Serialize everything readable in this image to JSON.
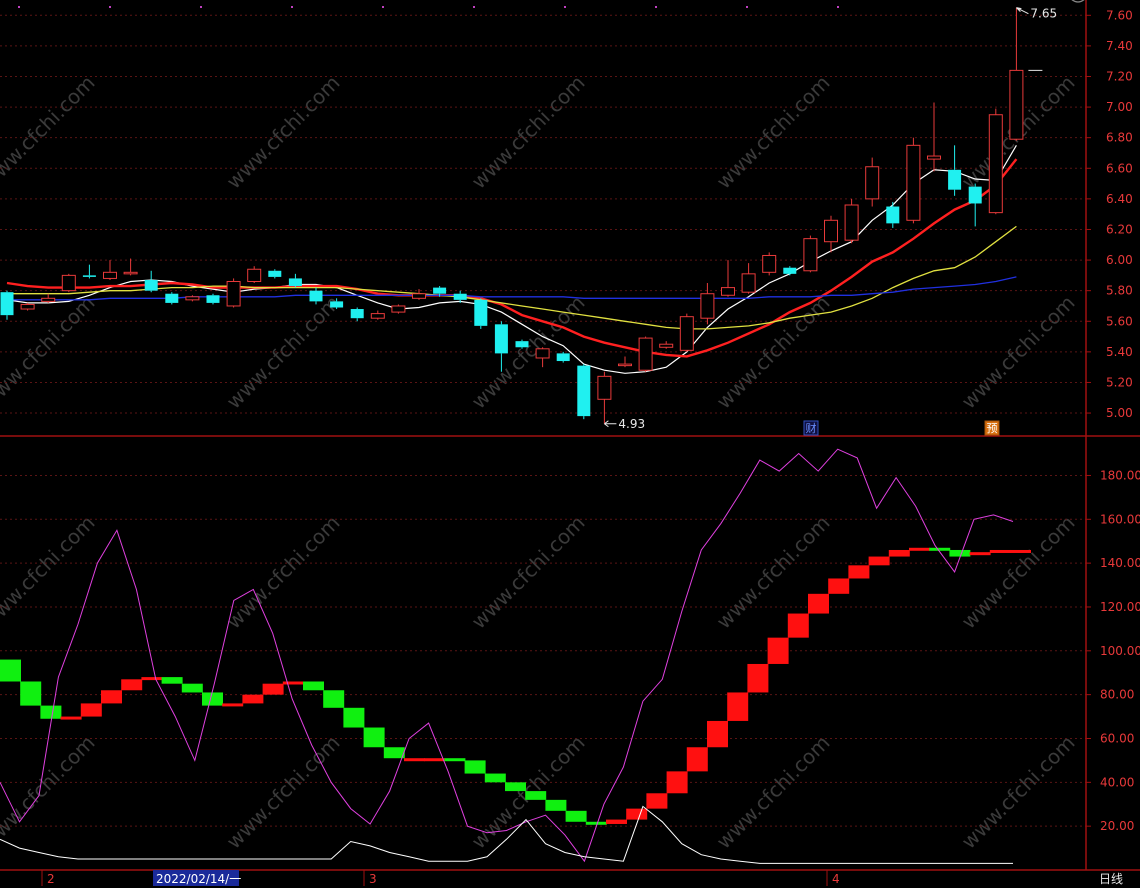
{
  "colors": {
    "background": "#000000",
    "frame": "#a01010",
    "axis_text": "#e8393a",
    "grid": "#5a1414",
    "up_candle": "#e83a3a",
    "down_candle": "#20f0f0",
    "ma5": "#ffffff",
    "ma10": "#ff2020",
    "ma20": "#e0e040",
    "ma60": "#2030e0",
    "osc_line": "#e040e0",
    "vol_line": "#ffffff",
    "block_up": "#ff1010",
    "block_down": "#10f010"
  },
  "watermark": "www.cfchi.com",
  "status": {
    "timeframe": "日线",
    "date_cursor": "2022/02/14/一"
  },
  "chart_data": [
    {
      "type": "candlestick",
      "ylim": [
        4.85,
        7.7
      ],
      "yticks": [
        "5.00",
        "5.20",
        "5.40",
        "5.60",
        "5.80",
        "6.00",
        "6.20",
        "6.40",
        "6.60",
        "6.80",
        "7.00",
        "7.20",
        "7.40",
        "7.60"
      ],
      "grid": true,
      "annotations": {
        "high": "7.65",
        "low": "4.93",
        "event_marks": [
          "财",
          "预"
        ]
      },
      "candles": [
        {
          "o": 5.79,
          "c": 5.64,
          "h": 5.8,
          "l": 5.61
        },
        {
          "o": 5.68,
          "c": 5.71,
          "h": 5.72,
          "l": 5.67
        },
        {
          "o": 5.73,
          "c": 5.75,
          "h": 5.78,
          "l": 5.72
        },
        {
          "o": 5.8,
          "c": 5.9,
          "h": 5.91,
          "l": 5.79
        },
        {
          "o": 5.9,
          "c": 5.89,
          "h": 5.97,
          "l": 5.88
        },
        {
          "o": 5.88,
          "c": 5.92,
          "h": 6.0,
          "l": 5.87
        },
        {
          "o": 5.91,
          "c": 5.92,
          "h": 6.01,
          "l": 5.9
        },
        {
          "o": 5.87,
          "c": 5.8,
          "h": 5.93,
          "l": 5.79
        },
        {
          "o": 5.78,
          "c": 5.72,
          "h": 5.79,
          "l": 5.71
        },
        {
          "o": 5.74,
          "c": 5.76,
          "h": 5.77,
          "l": 5.73
        },
        {
          "o": 5.77,
          "c": 5.72,
          "h": 5.78,
          "l": 5.71
        },
        {
          "o": 5.7,
          "c": 5.86,
          "h": 5.88,
          "l": 5.69
        },
        {
          "o": 5.86,
          "c": 5.94,
          "h": 5.96,
          "l": 5.85
        },
        {
          "o": 5.93,
          "c": 5.89,
          "h": 5.94,
          "l": 5.88
        },
        {
          "o": 5.88,
          "c": 5.83,
          "h": 5.91,
          "l": 5.82
        },
        {
          "o": 5.8,
          "c": 5.73,
          "h": 5.82,
          "l": 5.71
        },
        {
          "o": 5.73,
          "c": 5.69,
          "h": 5.75,
          "l": 5.68
        },
        {
          "o": 5.68,
          "c": 5.62,
          "h": 5.69,
          "l": 5.6
        },
        {
          "o": 5.62,
          "c": 5.65,
          "h": 5.67,
          "l": 5.61
        },
        {
          "o": 5.66,
          "c": 5.7,
          "h": 5.71,
          "l": 5.65
        },
        {
          "o": 5.75,
          "c": 5.78,
          "h": 5.81,
          "l": 5.74
        },
        {
          "o": 5.82,
          "c": 5.78,
          "h": 5.83,
          "l": 5.76
        },
        {
          "o": 5.78,
          "c": 5.74,
          "h": 5.8,
          "l": 5.72
        },
        {
          "o": 5.74,
          "c": 5.57,
          "h": 5.75,
          "l": 5.55
        },
        {
          "o": 5.58,
          "c": 5.39,
          "h": 5.6,
          "l": 5.27
        },
        {
          "o": 5.47,
          "c": 5.43,
          "h": 5.48,
          "l": 5.42
        },
        {
          "o": 5.36,
          "c": 5.42,
          "h": 5.43,
          "l": 5.3
        },
        {
          "o": 5.39,
          "c": 5.34,
          "h": 5.4,
          "l": 5.33
        },
        {
          "o": 5.31,
          "c": 4.98,
          "h": 5.32,
          "l": 4.96
        },
        {
          "o": 5.09,
          "c": 5.24,
          "h": 5.27,
          "l": 4.93
        },
        {
          "o": 5.31,
          "c": 5.32,
          "h": 5.37,
          "l": 5.3
        },
        {
          "o": 5.28,
          "c": 5.49,
          "h": 5.5,
          "l": 5.27
        },
        {
          "o": 5.43,
          "c": 5.45,
          "h": 5.47,
          "l": 5.42
        },
        {
          "o": 5.41,
          "c": 5.63,
          "h": 5.65,
          "l": 5.4
        },
        {
          "o": 5.62,
          "c": 5.78,
          "h": 5.85,
          "l": 5.58
        },
        {
          "o": 5.77,
          "c": 5.82,
          "h": 6.0,
          "l": 5.76
        },
        {
          "o": 5.79,
          "c": 5.91,
          "h": 5.98,
          "l": 5.78
        },
        {
          "o": 5.92,
          "c": 6.03,
          "h": 6.05,
          "l": 5.9
        },
        {
          "o": 5.95,
          "c": 5.91,
          "h": 5.96,
          "l": 5.9
        },
        {
          "o": 5.93,
          "c": 6.14,
          "h": 6.16,
          "l": 5.92
        },
        {
          "o": 6.12,
          "c": 6.26,
          "h": 6.29,
          "l": 6.05
        },
        {
          "o": 6.13,
          "c": 6.36,
          "h": 6.4,
          "l": 6.11
        },
        {
          "o": 6.4,
          "c": 6.61,
          "h": 6.67,
          "l": 6.35
        },
        {
          "o": 6.35,
          "c": 6.24,
          "h": 6.38,
          "l": 6.21
        },
        {
          "o": 6.26,
          "c": 6.75,
          "h": 6.8,
          "l": 6.24
        },
        {
          "o": 6.66,
          "c": 6.68,
          "h": 7.03,
          "l": 6.58
        },
        {
          "o": 6.59,
          "c": 6.46,
          "h": 6.75,
          "l": 6.42
        },
        {
          "o": 6.48,
          "c": 6.37,
          "h": 6.5,
          "l": 6.22
        },
        {
          "o": 6.31,
          "c": 6.95,
          "h": 6.99,
          "l": 6.3
        },
        {
          "o": 6.79,
          "c": 7.24,
          "h": 7.65,
          "l": 6.78
        }
      ],
      "ma_lines": [
        {
          "name": "MA5",
          "color_key": "ma5",
          "values": [
            5.74,
            5.72,
            5.72,
            5.73,
            5.77,
            5.82,
            5.86,
            5.87,
            5.86,
            5.83,
            5.81,
            5.79,
            5.81,
            5.82,
            5.84,
            5.84,
            5.82,
            5.77,
            5.72,
            5.68,
            5.69,
            5.72,
            5.73,
            5.71,
            5.66,
            5.58,
            5.5,
            5.44,
            5.32,
            5.28,
            5.26,
            5.27,
            5.3,
            5.4,
            5.56,
            5.68,
            5.76,
            5.85,
            5.91,
            5.99,
            6.06,
            6.12,
            6.26,
            6.36,
            6.5,
            6.59,
            6.58,
            6.53,
            6.52,
            6.75
          ]
        },
        {
          "name": "MA10",
          "color_key": "ma10",
          "values": [
            5.85,
            5.83,
            5.82,
            5.82,
            5.82,
            5.83,
            5.83,
            5.84,
            5.85,
            5.84,
            5.82,
            5.82,
            5.82,
            5.82,
            5.83,
            5.83,
            5.83,
            5.81,
            5.78,
            5.77,
            5.77,
            5.77,
            5.77,
            5.75,
            5.71,
            5.64,
            5.6,
            5.56,
            5.5,
            5.46,
            5.43,
            5.4,
            5.38,
            5.37,
            5.41,
            5.46,
            5.52,
            5.58,
            5.66,
            5.72,
            5.8,
            5.89,
            5.99,
            6.05,
            6.14,
            6.24,
            6.33,
            6.39,
            6.49,
            6.66
          ]
        },
        {
          "name": "MA20",
          "color_key": "ma20",
          "values": [
            5.78,
            5.78,
            5.78,
            5.78,
            5.79,
            5.8,
            5.8,
            5.81,
            5.82,
            5.82,
            5.83,
            5.83,
            5.82,
            5.82,
            5.82,
            5.82,
            5.82,
            5.81,
            5.8,
            5.79,
            5.78,
            5.77,
            5.76,
            5.74,
            5.72,
            5.7,
            5.68,
            5.66,
            5.64,
            5.62,
            5.6,
            5.58,
            5.56,
            5.55,
            5.55,
            5.56,
            5.57,
            5.59,
            5.62,
            5.64,
            5.66,
            5.7,
            5.75,
            5.82,
            5.88,
            5.93,
            5.95,
            6.02,
            6.12,
            6.22
          ]
        },
        {
          "name": "MA60",
          "color_key": "ma60",
          "values": [
            5.74,
            5.74,
            5.74,
            5.74,
            5.74,
            5.75,
            5.75,
            5.75,
            5.75,
            5.76,
            5.76,
            5.76,
            5.76,
            5.76,
            5.77,
            5.77,
            5.77,
            5.77,
            5.77,
            5.77,
            5.77,
            5.77,
            5.77,
            5.76,
            5.76,
            5.76,
            5.76,
            5.76,
            5.75,
            5.75,
            5.75,
            5.75,
            5.75,
            5.75,
            5.75,
            5.75,
            5.75,
            5.76,
            5.76,
            5.76,
            5.77,
            5.77,
            5.78,
            5.79,
            5.81,
            5.82,
            5.83,
            5.84,
            5.86,
            5.89
          ]
        }
      ]
    },
    {
      "type": "line",
      "ylim": [
        0,
        198
      ],
      "yticks": [
        "20.00",
        "40.00",
        "60.00",
        "80.00",
        "100.00",
        "120.00",
        "140.00",
        "160.00",
        "180.00"
      ],
      "grid": true,
      "step_blocks": [
        {
          "from": 96,
          "to": 86,
          "up": false
        },
        {
          "from": 86,
          "to": 75,
          "up": false
        },
        {
          "from": 75,
          "to": 69,
          "up": false
        },
        {
          "from": 69,
          "to": 70,
          "up": true
        },
        {
          "from": 70,
          "to": 76,
          "up": true
        },
        {
          "from": 76,
          "to": 82,
          "up": true
        },
        {
          "from": 82,
          "to": 87,
          "up": true
        },
        {
          "from": 87,
          "to": 88,
          "up": true
        },
        {
          "from": 88,
          "to": 85,
          "up": false
        },
        {
          "from": 85,
          "to": 81,
          "up": false
        },
        {
          "from": 81,
          "to": 75,
          "up": false
        },
        {
          "from": 75,
          "to": 76,
          "up": true
        },
        {
          "from": 76,
          "to": 80,
          "up": true
        },
        {
          "from": 80,
          "to": 85,
          "up": true
        },
        {
          "from": 85,
          "to": 86,
          "up": true
        },
        {
          "from": 86,
          "to": 82,
          "up": false
        },
        {
          "from": 82,
          "to": 74,
          "up": false
        },
        {
          "from": 74,
          "to": 65,
          "up": false
        },
        {
          "from": 65,
          "to": 56,
          "up": false
        },
        {
          "from": 56,
          "to": 51,
          "up": false
        },
        {
          "from": 51,
          "to": 50,
          "up": true
        },
        {
          "from": 50,
          "to": 51,
          "up": true
        },
        {
          "from": 51,
          "to": 50,
          "up": false
        },
        {
          "from": 50,
          "to": 44,
          "up": false
        },
        {
          "from": 44,
          "to": 40,
          "up": false
        },
        {
          "from": 40,
          "to": 36,
          "up": false
        },
        {
          "from": 36,
          "to": 32,
          "up": false
        },
        {
          "from": 32,
          "to": 27,
          "up": false
        },
        {
          "from": 27,
          "to": 22,
          "up": false
        },
        {
          "from": 22,
          "to": 21,
          "up": false
        },
        {
          "from": 21,
          "to": 23,
          "up": true
        },
        {
          "from": 23,
          "to": 28,
          "up": true
        },
        {
          "from": 28,
          "to": 35,
          "up": true
        },
        {
          "from": 35,
          "to": 45,
          "up": true
        },
        {
          "from": 45,
          "to": 56,
          "up": true
        },
        {
          "from": 56,
          "to": 68,
          "up": true
        },
        {
          "from": 68,
          "to": 81,
          "up": true
        },
        {
          "from": 81,
          "to": 94,
          "up": true
        },
        {
          "from": 94,
          "to": 106,
          "up": true
        },
        {
          "from": 106,
          "to": 117,
          "up": true
        },
        {
          "from": 117,
          "to": 126,
          "up": true
        },
        {
          "from": 126,
          "to": 133,
          "up": true
        },
        {
          "from": 133,
          "to": 139,
          "up": true
        },
        {
          "from": 139,
          "to": 143,
          "up": true
        },
        {
          "from": 143,
          "to": 146,
          "up": true
        },
        {
          "from": 146,
          "to": 147,
          "up": true
        },
        {
          "from": 147,
          "to": 146,
          "up": false
        },
        {
          "from": 146,
          "to": 143,
          "up": false
        },
        {
          "from": 144,
          "to": 145,
          "up": true
        },
        {
          "from": 145,
          "to": 146,
          "up": true
        },
        {
          "from": 146,
          "to": 146,
          "up": true
        }
      ],
      "series": [
        {
          "color_key": "osc_line",
          "values": [
            40,
            22,
            34,
            88,
            112,
            140,
            155,
            128,
            87,
            70,
            50,
            85,
            123,
            128,
            108,
            78,
            57,
            40,
            28,
            21,
            36,
            60,
            67,
            45,
            20,
            17,
            18,
            22,
            25,
            16,
            4,
            30,
            47,
            77,
            87,
            118,
            146,
            158,
            172,
            187,
            182,
            190,
            182,
            192,
            188,
            165,
            179,
            166,
            148,
            136,
            160,
            162,
            159
          ]
        },
        {
          "color_key": "vol_line",
          "values": [
            14,
            10,
            8,
            6,
            5,
            5,
            5,
            5,
            5,
            5,
            5,
            5,
            5,
            5,
            5,
            5,
            5,
            5,
            13,
            11,
            8,
            6,
            4,
            4,
            4,
            6,
            14,
            23,
            12,
            8,
            6,
            5,
            4,
            29,
            22,
            12,
            7,
            5,
            4,
            3,
            3,
            3,
            3,
            3,
            3,
            3,
            3,
            3,
            3,
            3,
            3,
            3,
            3
          ]
        }
      ]
    }
  ],
  "xaxis": {
    "labels": [
      "2",
      "3",
      "4"
    ]
  }
}
